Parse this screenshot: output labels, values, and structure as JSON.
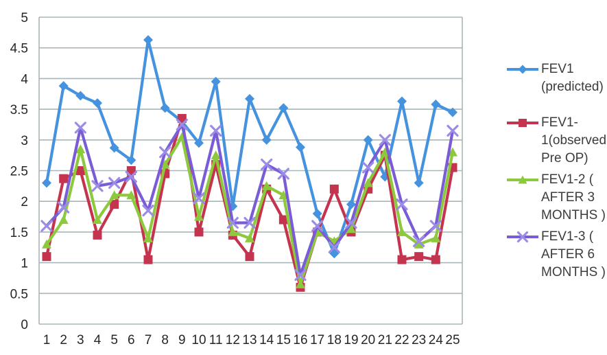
{
  "chart_data": {
    "type": "line",
    "title": "",
    "xlabel": "",
    "ylabel": "",
    "categories": [
      1,
      2,
      3,
      4,
      5,
      6,
      7,
      8,
      9,
      10,
      11,
      12,
      13,
      14,
      15,
      16,
      17,
      18,
      19,
      20,
      21,
      22,
      23,
      24,
      25
    ],
    "yticks": [
      "5",
      "4.5",
      "4",
      "3.5",
      "3",
      "2.5",
      "2",
      "1.5",
      "1",
      "0.5",
      "0"
    ],
    "ytick_values": [
      5,
      4.5,
      4,
      3.5,
      3,
      2.5,
      2,
      1.5,
      1,
      0.5,
      0
    ],
    "ylim": [
      0,
      5
    ],
    "grid": true,
    "legend_position": "right",
    "series": [
      {
        "name": "FEV1 (predicted)",
        "legend_label": "FEV1\n(predicted)",
        "marker": "diamond",
        "color": "#4592DE",
        "values": [
          2.3,
          3.88,
          3.72,
          3.6,
          2.87,
          2.67,
          4.63,
          3.52,
          3.3,
          2.95,
          3.95,
          1.92,
          3.67,
          3.0,
          3.52,
          2.88,
          1.8,
          1.15,
          1.95,
          3.0,
          2.4,
          3.63,
          2.3,
          3.58,
          3.45
        ]
      },
      {
        "name": "FEV1-1(observed Pre OP)",
        "legend_label": "FEV1-\n1(observed\nPre OP)",
        "marker": "square",
        "color": "#C5344E",
        "values": [
          1.1,
          2.37,
          2.5,
          1.45,
          1.95,
          2.5,
          1.05,
          2.45,
          3.35,
          1.5,
          2.6,
          1.45,
          1.1,
          2.2,
          1.7,
          0.6,
          1.5,
          2.2,
          1.5,
          2.2,
          2.75,
          1.05,
          1.1,
          1.05,
          2.55
        ]
      },
      {
        "name": "FEV1-2 ( AFTER 3 MONTHS )",
        "legend_label": "FEV1-2 (\nAFTER 3\nMONTHS )",
        "marker": "triangle",
        "color": "#8CC93C",
        "values": [
          1.3,
          1.7,
          2.85,
          1.7,
          2.1,
          2.1,
          1.4,
          2.6,
          3.05,
          1.75,
          2.75,
          1.5,
          1.4,
          2.25,
          2.1,
          0.65,
          1.5,
          1.35,
          1.55,
          2.3,
          2.8,
          1.5,
          1.3,
          1.4,
          2.8
        ]
      },
      {
        "name": "FEV1-3 ( AFTER 6 MONTHS )",
        "legend_label": "FEV1-3 (\nAFTER 6\nMONTHS )",
        "marker": "x",
        "color": "#7A5CD6",
        "marker_color": "#9B8CE6",
        "values": [
          1.6,
          1.9,
          3.2,
          2.25,
          2.3,
          2.4,
          1.85,
          2.8,
          3.25,
          2.05,
          3.15,
          1.65,
          1.65,
          2.6,
          2.45,
          0.8,
          1.6,
          1.25,
          1.65,
          2.55,
          3.0,
          1.95,
          1.35,
          1.6,
          3.15
        ]
      }
    ],
    "colors": {
      "gridline": "#A9B6B9",
      "axis_text": "#262626",
      "legend_text": "#3C3C3C",
      "background": "#FFFFFF"
    }
  }
}
